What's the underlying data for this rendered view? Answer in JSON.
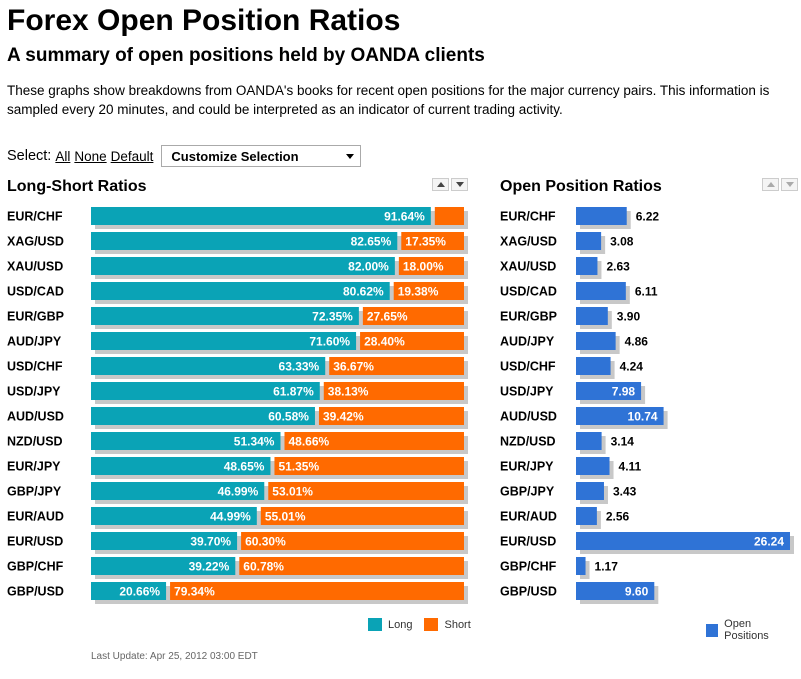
{
  "header": {
    "title": "Forex Open Position Ratios",
    "subtitle": "A summary of open positions held by OANDA clients",
    "description": "These graphs show breakdowns from OANDA's books for recent open positions for the major currency pairs. This information is sampled every 20 minutes, and could be interpreted as an indicator of current trading activity."
  },
  "select": {
    "label": "Select:",
    "all": "All",
    "none": "None",
    "default": "Default",
    "dropdown": "Customize Selection"
  },
  "colors": {
    "long": "#0aa3b6",
    "short": "#ff6a00",
    "open": "#2f73d6",
    "shadow": "#c8c8c8"
  },
  "chart_data": [
    {
      "type": "bar",
      "title": "Long-Short Ratios",
      "stacked": true,
      "orientation": "horizontal",
      "categories": [
        "EUR/CHF",
        "XAG/USD",
        "XAU/USD",
        "USD/CAD",
        "EUR/GBP",
        "AUD/JPY",
        "USD/CHF",
        "USD/JPY",
        "AUD/USD",
        "NZD/USD",
        "EUR/JPY",
        "GBP/JPY",
        "EUR/AUD",
        "EUR/USD",
        "GBP/CHF",
        "GBP/USD"
      ],
      "series": [
        {
          "name": "Long",
          "values": [
            91.64,
            82.65,
            82.0,
            80.62,
            72.35,
            71.6,
            63.33,
            61.87,
            60.58,
            51.34,
            48.65,
            46.99,
            44.99,
            39.7,
            39.22,
            20.66
          ],
          "labels": [
            "91.64%",
            "82.65%",
            "82.00%",
            "80.62%",
            "72.35%",
            "71.60%",
            "63.33%",
            "61.87%",
            "60.58%",
            "51.34%",
            "48.65%",
            "46.99%",
            "44.99%",
            "39.70%",
            "39.22%",
            "20.66%"
          ]
        },
        {
          "name": "Short",
          "values": [
            8.36,
            17.35,
            18.0,
            19.38,
            27.65,
            28.4,
            36.67,
            38.13,
            39.42,
            48.66,
            51.35,
            53.01,
            55.01,
            60.3,
            60.78,
            79.34
          ],
          "labels": [
            "",
            "17.35%",
            "18.00%",
            "19.38%",
            "27.65%",
            "28.40%",
            "36.67%",
            "38.13%",
            "39.42%",
            "48.66%",
            "51.35%",
            "53.01%",
            "55.01%",
            "60.30%",
            "60.78%",
            "79.34%"
          ]
        }
      ],
      "xlim": [
        0,
        100
      ],
      "legend_position": "bottom-right"
    },
    {
      "type": "bar",
      "title": "Open Position Ratios",
      "orientation": "horizontal",
      "categories": [
        "EUR/CHF",
        "XAG/USD",
        "XAU/USD",
        "USD/CAD",
        "EUR/GBP",
        "AUD/JPY",
        "USD/CHF",
        "USD/JPY",
        "AUD/USD",
        "NZD/USD",
        "EUR/JPY",
        "GBP/JPY",
        "EUR/AUD",
        "EUR/USD",
        "GBP/CHF",
        "GBP/USD"
      ],
      "series": [
        {
          "name": "Open Positions",
          "values": [
            6.22,
            3.08,
            2.63,
            6.11,
            3.9,
            4.86,
            4.24,
            7.98,
            10.74,
            3.14,
            4.11,
            3.43,
            2.56,
            26.24,
            1.17,
            9.6
          ],
          "labels": [
            "6.22",
            "3.08",
            "2.63",
            "6.11",
            "3.90",
            "4.86",
            "4.24",
            "7.98",
            "10.74",
            "3.14",
            "4.11",
            "3.43",
            "2.56",
            "26.24",
            "1.17",
            "9.60"
          ]
        }
      ],
      "xlim": [
        0,
        26.24
      ],
      "legend_position": "bottom-right"
    }
  ],
  "footer": {
    "last_update": "Last Update: Apr 25, 2012 03:00 EDT"
  }
}
